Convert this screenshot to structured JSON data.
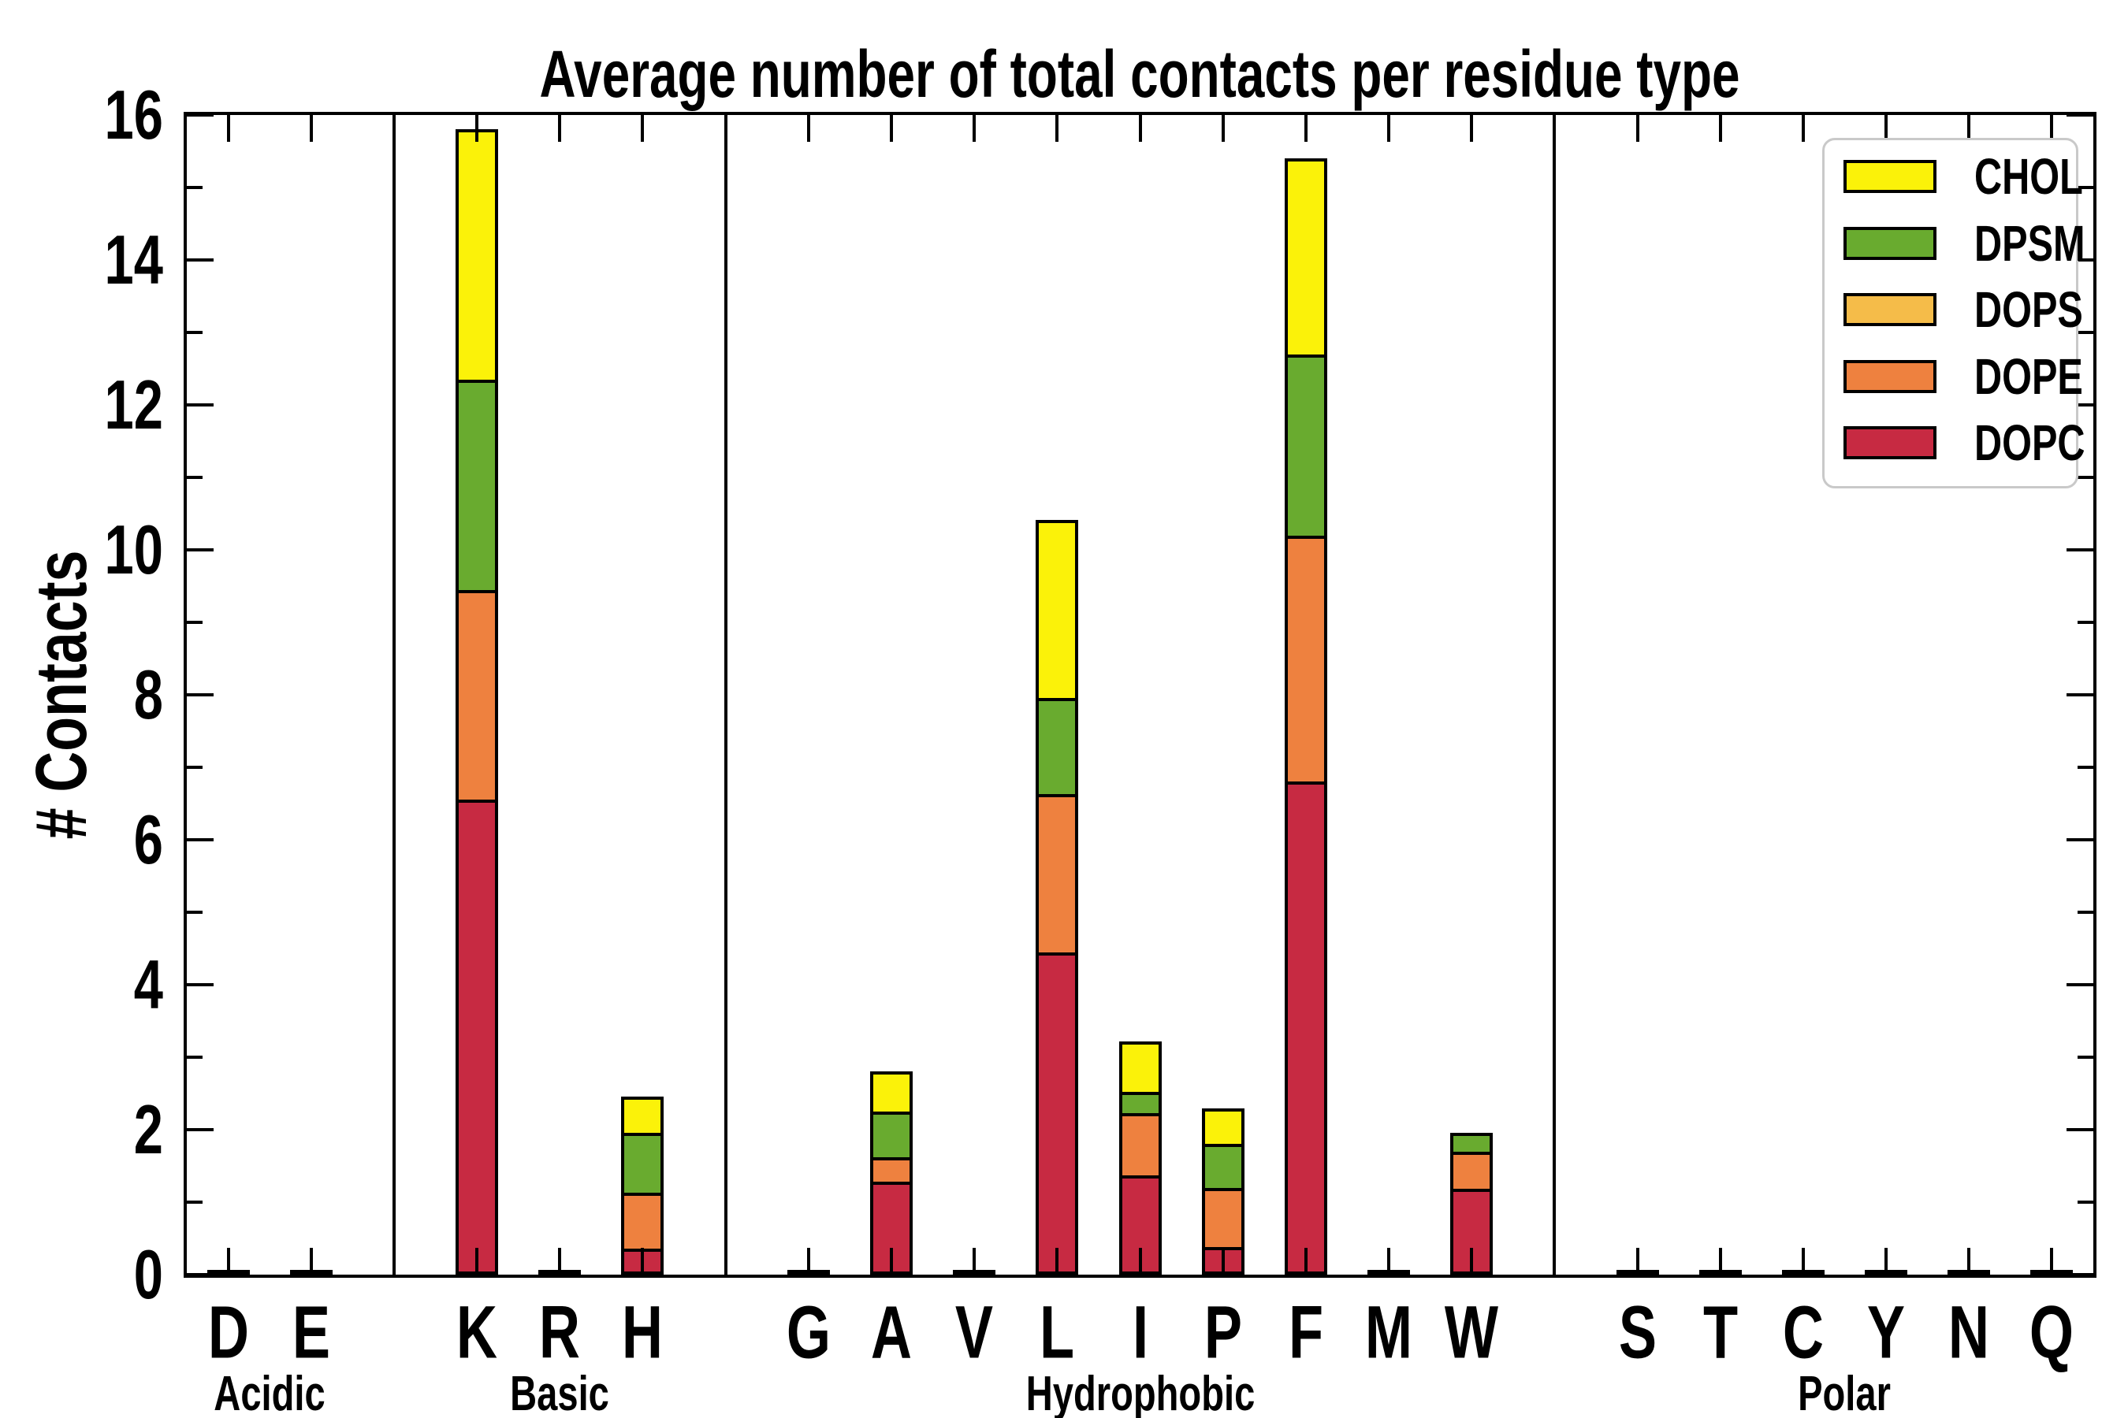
{
  "chart_data": {
    "type": "bar",
    "stacked": true,
    "title": "Average number of total contacts per residue type",
    "xlabel": "",
    "ylabel": "# Contacts",
    "ylim": [
      0,
      16
    ],
    "ytick_step": 2,
    "ytick_labels": [
      "0",
      "2",
      "4",
      "6",
      "8",
      "10",
      "12",
      "14",
      "16"
    ],
    "grid": false,
    "legend_position": "upper right",
    "legend": [
      "CHOL",
      "DPSM",
      "DOPS",
      "DOPE",
      "DOPC"
    ],
    "series_order_bottom_to_top": [
      "DOPC",
      "DOPE",
      "DOPS",
      "DPSM",
      "CHOL"
    ],
    "colors": {
      "CHOL": "#fbf209",
      "DPSM": "#69ab2f",
      "DOPS": "#f5bc49",
      "DOPE": "#ee813f",
      "DOPC": "#c72a42",
      "bar_outline": "#000000",
      "legend_border": "#c9c9c9"
    },
    "groups": [
      {
        "label": "Acidic",
        "residues": [
          {
            "letter": "D",
            "trace": true,
            "values": [
              0,
              0,
              0,
              0,
              0
            ]
          },
          {
            "letter": "E",
            "trace": true,
            "values": [
              0,
              0,
              0,
              0,
              0
            ]
          }
        ]
      },
      {
        "label": "Basic",
        "residues": [
          {
            "letter": "K",
            "trace": false,
            "values": [
              6.55,
              2.9,
              0,
              2.9,
              3.45
            ]
          },
          {
            "letter": "R",
            "trace": true,
            "values": [
              0,
              0,
              0,
              0,
              0
            ]
          },
          {
            "letter": "H",
            "trace": false,
            "values": [
              0.36,
              0.77,
              0,
              0.83,
              0.5
            ]
          }
        ]
      },
      {
        "label": "Hydrophobic",
        "residues": [
          {
            "letter": "G",
            "trace": true,
            "values": [
              0,
              0,
              0,
              0,
              0
            ]
          },
          {
            "letter": "A",
            "trace": false,
            "values": [
              1.28,
              0.34,
              0,
              0.63,
              0.55
            ]
          },
          {
            "letter": "V",
            "trace": true,
            "values": [
              0,
              0,
              0,
              0,
              0
            ]
          },
          {
            "letter": "L",
            "trace": false,
            "values": [
              4.45,
              2.18,
              0,
              1.33,
              2.45
            ]
          },
          {
            "letter": "I",
            "trace": false,
            "values": [
              1.37,
              0.86,
              0,
              0.29,
              0.7
            ]
          },
          {
            "letter": "P",
            "trace": false,
            "values": [
              0.38,
              0.82,
              0,
              0.6,
              0.49
            ]
          },
          {
            "letter": "F",
            "trace": false,
            "values": [
              6.8,
              3.4,
              0,
              2.5,
              2.7
            ]
          },
          {
            "letter": "M",
            "trace": true,
            "values": [
              0,
              0,
              0,
              0,
              0
            ]
          },
          {
            "letter": "W",
            "trace": false,
            "values": [
              1.18,
              0.52,
              0,
              0.26,
              0
            ]
          }
        ]
      },
      {
        "label": "Polar",
        "residues": [
          {
            "letter": "S",
            "trace": true,
            "values": [
              0,
              0,
              0,
              0,
              0
            ]
          },
          {
            "letter": "T",
            "trace": true,
            "values": [
              0,
              0,
              0,
              0,
              0
            ]
          },
          {
            "letter": "C",
            "trace": true,
            "values": [
              0,
              0,
              0,
              0,
              0
            ]
          },
          {
            "letter": "Y",
            "trace": true,
            "values": [
              0,
              0,
              0,
              0,
              0
            ]
          },
          {
            "letter": "N",
            "trace": true,
            "values": [
              0,
              0,
              0,
              0,
              0
            ]
          },
          {
            "letter": "Q",
            "trace": true,
            "values": [
              0,
              0,
              0,
              0,
              0
            ]
          }
        ]
      }
    ]
  }
}
